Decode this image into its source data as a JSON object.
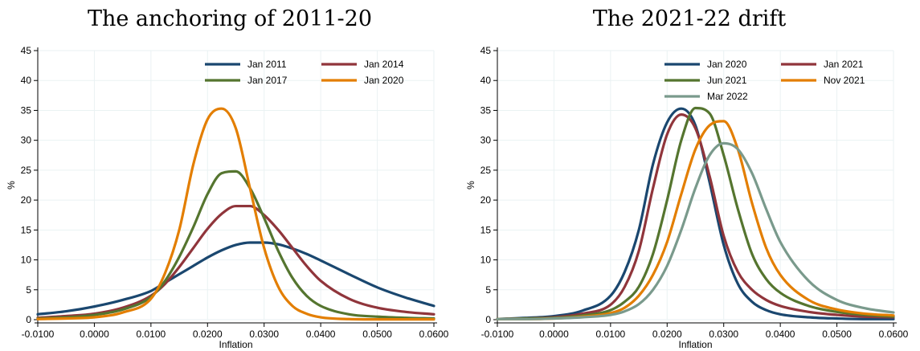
{
  "chart_data": [
    {
      "type": "line",
      "title": "The anchoring of 2011-20",
      "xlabel": "Inflation",
      "ylabel": "%",
      "xlim": [
        -0.01,
        0.06
      ],
      "ylim": [
        0,
        45
      ],
      "xticks": [
        "-0.0100",
        "0.0000",
        "0.0100",
        "0.0200",
        "0.0300",
        "0.0400",
        "0.0500",
        "0.0600"
      ],
      "yticks": [
        "0",
        "5",
        "10",
        "15",
        "20",
        "25",
        "30",
        "35",
        "40",
        "45"
      ],
      "grid": true,
      "legend_position": "top-right",
      "x": [
        -0.01,
        -0.005,
        0.0,
        0.005,
        0.01,
        0.0125,
        0.015,
        0.0175,
        0.02,
        0.0225,
        0.025,
        0.0275,
        0.03,
        0.0325,
        0.035,
        0.0375,
        0.04,
        0.045,
        0.05,
        0.055,
        0.06
      ],
      "series": [
        {
          "name": "Jan 2011",
          "color": "#1a476f",
          "values": [
            0.9,
            1.4,
            2.2,
            3.3,
            4.8,
            6.2,
            7.6,
            9.0,
            10.4,
            11.6,
            12.5,
            12.9,
            12.9,
            12.6,
            11.9,
            11.0,
            9.9,
            7.6,
            5.4,
            3.7,
            2.3
          ]
        },
        {
          "name": "Jan 2014",
          "color": "#90353b",
          "values": [
            0.3,
            0.6,
            1.0,
            2.0,
            4.0,
            6.0,
            8.8,
            12.0,
            15.2,
            17.7,
            19.0,
            19.0,
            17.5,
            15.0,
            12.0,
            9.0,
            6.5,
            3.5,
            2.0,
            1.3,
            0.9
          ]
        },
        {
          "name": "Jan 2017",
          "color": "#55752f",
          "values": [
            0.2,
            0.4,
            0.8,
            1.7,
            3.8,
            6.5,
            10.5,
            15.5,
            21.0,
            24.5,
            24.8,
            22.0,
            17.0,
            11.5,
            7.0,
            4.0,
            2.3,
            0.9,
            0.5,
            0.3,
            0.2
          ]
        },
        {
          "name": "Jan 2020",
          "color": "#e37e00",
          "values": [
            0.1,
            0.2,
            0.4,
            1.2,
            3.5,
            7.8,
            15.0,
            26.0,
            33.5,
            35.3,
            32.0,
            22.0,
            12.0,
            5.5,
            2.3,
            1.0,
            0.4,
            0.1,
            0.05,
            0.05,
            0.05
          ]
        }
      ]
    },
    {
      "type": "line",
      "title": "The 2021-22 drift",
      "xlabel": "Inflation",
      "ylabel": "%",
      "xlim": [
        -0.01,
        0.06
      ],
      "ylim": [
        0,
        45
      ],
      "xticks": [
        "-0.0100",
        "0.0000",
        "0.0100",
        "0.0200",
        "0.0300",
        "0.0400",
        "0.0500",
        "0.0600"
      ],
      "yticks": [
        "0",
        "5",
        "10",
        "15",
        "20",
        "25",
        "30",
        "35",
        "40",
        "45"
      ],
      "grid": true,
      "legend_position": "top-right",
      "x": [
        -0.01,
        -0.005,
        0.0,
        0.005,
        0.01,
        0.0125,
        0.015,
        0.0175,
        0.02,
        0.0225,
        0.025,
        0.0275,
        0.03,
        0.0325,
        0.035,
        0.0375,
        0.04,
        0.045,
        0.05,
        0.055,
        0.06
      ],
      "series": [
        {
          "name": "Jan 2020",
          "color": "#1a476f",
          "values": [
            0.1,
            0.3,
            0.6,
            1.5,
            4.0,
            8.0,
            15.0,
            26.0,
            33.0,
            35.3,
            32.5,
            23.0,
            12.5,
            6.0,
            3.0,
            1.6,
            0.9,
            0.4,
            0.2,
            0.1,
            0.1
          ]
        },
        {
          "name": "Jan 2021",
          "color": "#90353b",
          "values": [
            0.1,
            0.2,
            0.4,
            1.0,
            2.5,
            5.5,
            11.5,
            22.0,
            31.0,
            34.3,
            32.0,
            24.0,
            14.0,
            8.0,
            5.0,
            3.3,
            2.3,
            1.3,
            0.8,
            0.5,
            0.4
          ]
        },
        {
          "name": "Jun 2021",
          "color": "#55752f",
          "values": [
            0.1,
            0.2,
            0.3,
            0.7,
            1.6,
            3.0,
            5.5,
            11.0,
            20.0,
            30.0,
            35.4,
            34.5,
            27.5,
            18.5,
            11.0,
            6.8,
            4.5,
            2.3,
            1.3,
            0.8,
            0.5
          ]
        },
        {
          "name": "Nov 2021",
          "color": "#e37e00",
          "values": [
            0.1,
            0.1,
            0.2,
            0.5,
            1.1,
            2.0,
            4.0,
            7.5,
            13.0,
            21.0,
            28.5,
            32.5,
            33.2,
            28.5,
            19.5,
            12.0,
            7.5,
            3.3,
            1.7,
            1.0,
            0.7
          ]
        },
        {
          "name": "Mar 2022",
          "color": "#7a9a8c",
          "values": [
            0.1,
            0.1,
            0.2,
            0.4,
            0.8,
            1.4,
            2.6,
            5.0,
            9.0,
            15.0,
            22.0,
            27.5,
            29.5,
            28.5,
            24.5,
            18.5,
            13.0,
            6.5,
            3.3,
            1.9,
            1.2
          ]
        }
      ]
    }
  ]
}
